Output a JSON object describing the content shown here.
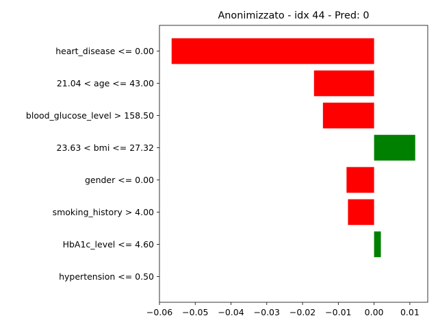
{
  "chart_data": {
    "type": "bar",
    "orientation": "horizontal",
    "title": "Anonimizzato - idx 44 - Pred: 0",
    "xlabel": "",
    "ylabel": "",
    "categories": [
      "heart_disease <= 0.00",
      "21.04 < age <= 43.00",
      "blood_glucose_level > 158.50",
      "23.63 < bmi <= 27.32",
      "gender <= 0.00",
      "smoking_history > 4.00",
      "HbA1c_level <= 4.60",
      "hypertension <= 0.50"
    ],
    "values": [
      -0.0566,
      -0.0168,
      -0.0143,
      0.0115,
      -0.0077,
      -0.0073,
      0.0019,
      0.0
    ],
    "xlim": [
      -0.06,
      0.015
    ],
    "xticks": [
      -0.06,
      -0.05,
      -0.04,
      -0.03,
      -0.02,
      -0.01,
      0.0,
      0.01
    ],
    "xtick_labels": [
      "−0.06",
      "−0.05",
      "−0.04",
      "−0.03",
      "−0.02",
      "−0.01",
      "0.00",
      "0.01"
    ],
    "colors": {
      "positive": "#008000",
      "negative": "#ff0000"
    },
    "grid": false,
    "legend": "none"
  }
}
